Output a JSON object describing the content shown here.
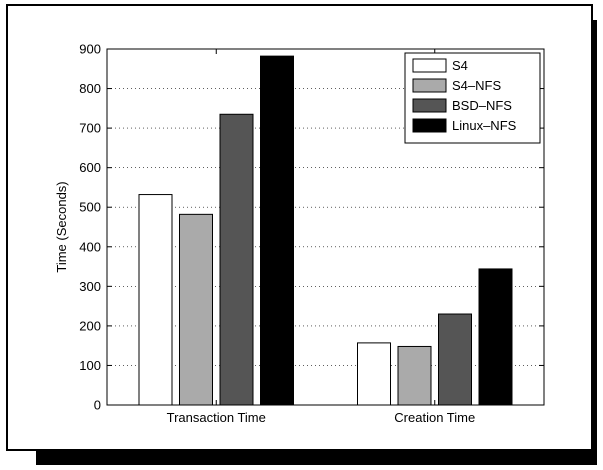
{
  "chart_data": {
    "type": "bar",
    "title": "",
    "xlabel": "",
    "ylabel": "Time (Seconds)",
    "ylim": [
      0,
      900
    ],
    "yticks": [
      0,
      100,
      200,
      300,
      400,
      500,
      600,
      700,
      800,
      900
    ],
    "grid": "horizontal dotted",
    "legend_position": "top-right",
    "categories": [
      "Transaction Time",
      "Creation Time"
    ],
    "series": [
      {
        "name": "S4",
        "values": [
          532,
          157
        ],
        "color": "#ffffff"
      },
      {
        "name": "S4–NFS",
        "values": [
          482,
          148
        ],
        "color": "#aaaaaa"
      },
      {
        "name": "BSD–NFS",
        "values": [
          735,
          230
        ],
        "color": "#555555"
      },
      {
        "name": "Linux–NFS",
        "values": [
          882,
          344
        ],
        "color": "#000000"
      }
    ]
  }
}
